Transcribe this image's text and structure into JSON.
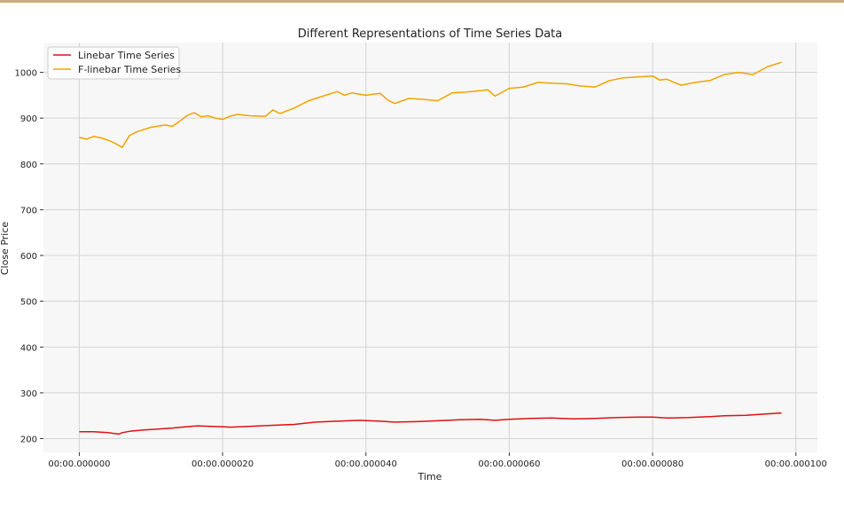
{
  "colors": {
    "plot_background": "#f7f7f7",
    "grid": "#d4d4d4",
    "top_rule": "#c8ab7e"
  },
  "chart_data": {
    "type": "line",
    "title": "Different Representations of Time Series Data",
    "xlabel": "Time",
    "ylabel": "Close Price",
    "xlim": [
      -5e-06,
      0.000103
    ],
    "ylim": [
      170,
      1065
    ],
    "x_ticks": [
      0,
      2e-05,
      4e-05,
      6e-05,
      8e-05,
      0.0001
    ],
    "x_tick_labels": [
      "00:00.000000",
      "00:00.000020",
      "00:00.000040",
      "00:00.000060",
      "00:00.000080",
      "00:00.000100"
    ],
    "y_ticks": [
      200,
      300,
      400,
      500,
      600,
      700,
      800,
      900,
      1000
    ],
    "y_tick_labels": [
      "200",
      "300",
      "400",
      "500",
      "600",
      "700",
      "800",
      "900",
      "1000"
    ],
    "grid": true,
    "legend": "top-left",
    "x_unit": "seconds",
    "series": [
      {
        "name": "Linebar Time Series",
        "color": "#e01010",
        "x": [
          0,
          2e-06,
          4e-06,
          5.5e-06,
          6e-06,
          7e-06,
          9e-06,
          1.1e-05,
          1.3e-05,
          1.5e-05,
          1.65e-05,
          1.8e-05,
          2e-05,
          2.1e-05,
          2.4e-05,
          2.7e-05,
          3e-05,
          3.3e-05,
          3.6e-05,
          3.9e-05,
          4.2e-05,
          4.4e-05,
          4.7e-05,
          5e-05,
          5.3e-05,
          5.6e-05,
          5.8e-05,
          6e-05,
          6.3e-05,
          6.6e-05,
          6.9e-05,
          7.2e-05,
          7.5e-05,
          7.8e-05,
          8e-05,
          8.2e-05,
          8.5e-05,
          8.8e-05,
          9e-05,
          9.3e-05,
          9.6e-05,
          9.8e-05
        ],
        "y": [
          215,
          215,
          213,
          210,
          213,
          216,
          219,
          221,
          223,
          226,
          228,
          227,
          226,
          225,
          227,
          229,
          231,
          236,
          238,
          240,
          238,
          236,
          237,
          239,
          241,
          242,
          240,
          242,
          244,
          245,
          243,
          244,
          246,
          247,
          247,
          245,
          246,
          248,
          250,
          251,
          254,
          256
        ]
      },
      {
        "name": "F-linebar Time Series",
        "color": "#f0a300",
        "x": [
          0,
          1e-06,
          2e-06,
          3e-06,
          4e-06,
          5e-06,
          6e-06,
          7e-06,
          8e-06,
          1e-05,
          1.2e-05,
          1.3e-05,
          1.4e-05,
          1.5e-05,
          1.6e-05,
          1.7e-05,
          1.8e-05,
          1.9e-05,
          2e-05,
          2.1e-05,
          2.2e-05,
          2.4e-05,
          2.6e-05,
          2.7e-05,
          2.8e-05,
          3e-05,
          3.2e-05,
          3.4e-05,
          3.6e-05,
          3.7e-05,
          3.8e-05,
          4e-05,
          4.2e-05,
          4.3e-05,
          4.4e-05,
          4.6e-05,
          4.8e-05,
          5e-05,
          5.2e-05,
          5.4e-05,
          5.6e-05,
          5.7e-05,
          5.8e-05,
          6e-05,
          6.2e-05,
          6.4e-05,
          6.6e-05,
          6.8e-05,
          7e-05,
          7.2e-05,
          7.4e-05,
          7.6e-05,
          7.8e-05,
          8e-05,
          8.1e-05,
          8.2e-05,
          8.3e-05,
          8.4e-05,
          8.6e-05,
          8.8e-05,
          9e-05,
          9.2e-05,
          9.4e-05,
          9.6e-05,
          9.8e-05
        ],
        "y": [
          858,
          854,
          860,
          857,
          852,
          845,
          836,
          862,
          870,
          880,
          885,
          882,
          893,
          905,
          912,
          903,
          905,
          900,
          897,
          904,
          908,
          905,
          904,
          918,
          910,
          922,
          938,
          948,
          958,
          950,
          955,
          950,
          954,
          940,
          932,
          943,
          941,
          938,
          955,
          957,
          960,
          962,
          948,
          965,
          968,
          978,
          976,
          975,
          970,
          968,
          982,
          988,
          990,
          992,
          983,
          985,
          978,
          972,
          978,
          982,
          995,
          1000,
          995,
          1012,
          1022
        ]
      }
    ]
  }
}
